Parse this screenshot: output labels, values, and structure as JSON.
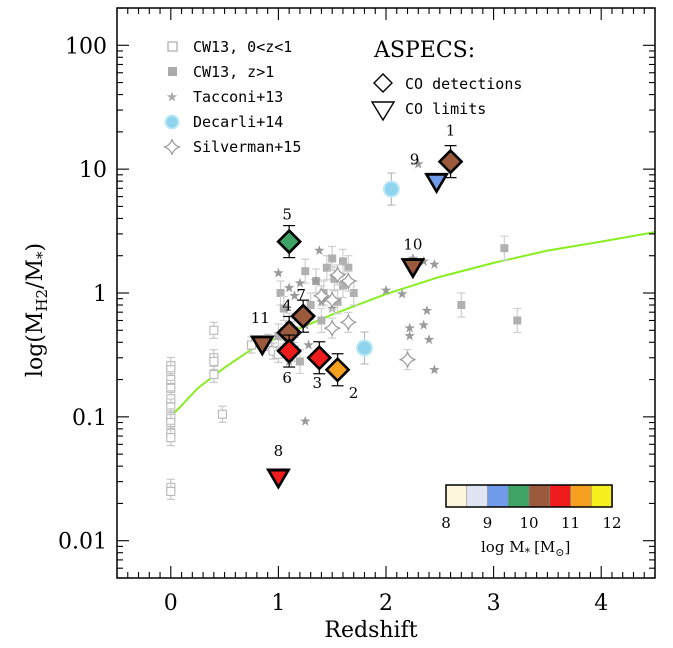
{
  "chart_data": {
    "type": "scatter",
    "xlabel": "Redshift",
    "ylabel": "log(M_H2/M_*)",
    "xlim": [
      -0.5,
      4.5
    ],
    "ylim": [
      0.005,
      200
    ],
    "y_scale": "log",
    "x_ticks": [
      "0",
      "1",
      "2",
      "3",
      "4"
    ],
    "y_ticks": [
      "0.01",
      "0.1",
      "1",
      "10",
      "100"
    ],
    "legend_position": "top-left",
    "legend": {
      "cw13_low": "CW13, 0<z<1",
      "cw13_high": "CW13, z>1",
      "tacconi": "Tacconi+13",
      "decarli": "Decarli+14",
      "silverman": "Silverman+15"
    },
    "aspecs_legend": {
      "title": "ASPECS:",
      "detections": "CO detections",
      "limits": "CO limits"
    },
    "colorbar": {
      "label": "log M",
      "label_sub": "*",
      "label_unit": "[M",
      "label_unit_sub": "⊙",
      "label_close": "]",
      "ticks": [
        "8",
        "9",
        "10",
        "11",
        "12"
      ],
      "colors": [
        "#fdf5dc",
        "#e0e4f4",
        "#6f9be8",
        "#3fa365",
        "#9c5a3c",
        "#ee1c1c",
        "#f5a01e",
        "#f5f01e"
      ]
    },
    "fit_color": "#88ee22",
    "fit_curve": {
      "x": [
        0,
        0.25,
        0.5,
        0.75,
        1,
        1.5,
        2,
        2.5,
        3,
        3.5,
        4,
        4.5
      ],
      "y": [
        0.1,
        0.17,
        0.25,
        0.35,
        0.44,
        0.67,
        0.98,
        1.35,
        1.75,
        2.2,
        2.6,
        3.1
      ]
    },
    "cw13_low": [
      {
        "x": 0.0,
        "y": 0.26
      },
      {
        "x": 0.0,
        "y": 0.24
      },
      {
        "x": 0.0,
        "y": 0.2
      },
      {
        "x": 0.0,
        "y": 0.17
      },
      {
        "x": 0.0,
        "y": 0.14
      },
      {
        "x": 0.0,
        "y": 0.12
      },
      {
        "x": 0.0,
        "y": 0.1
      },
      {
        "x": 0.0,
        "y": 0.09
      },
      {
        "x": 0.0,
        "y": 0.075
      },
      {
        "x": 0.0,
        "y": 0.068
      },
      {
        "x": 0.0,
        "y": 0.027
      },
      {
        "x": 0.0,
        "y": 0.025
      },
      {
        "x": 0.4,
        "y": 0.5
      },
      {
        "x": 0.4,
        "y": 0.3
      },
      {
        "x": 0.4,
        "y": 0.28
      },
      {
        "x": 0.4,
        "y": 0.22
      },
      {
        "x": 0.48,
        "y": 0.105
      },
      {
        "x": 0.75,
        "y": 0.38
      },
      {
        "x": 0.9,
        "y": 0.4
      },
      {
        "x": 0.95,
        "y": 0.34
      },
      {
        "x": 1.0,
        "y": 0.32
      },
      {
        "x": 1.05,
        "y": 0.45
      }
    ],
    "cw13_high": [
      {
        "x": 1.0,
        "y": 0.45
      },
      {
        "x": 1.02,
        "y": 1.0
      },
      {
        "x": 1.05,
        "y": 0.75
      },
      {
        "x": 1.1,
        "y": 0.55
      },
      {
        "x": 1.15,
        "y": 0.5
      },
      {
        "x": 1.15,
        "y": 0.35
      },
      {
        "x": 1.2,
        "y": 0.28
      },
      {
        "x": 1.25,
        "y": 1.5
      },
      {
        "x": 1.3,
        "y": 0.8
      },
      {
        "x": 1.35,
        "y": 1.25
      },
      {
        "x": 1.4,
        "y": 0.6
      },
      {
        "x": 1.42,
        "y": 1.0
      },
      {
        "x": 1.45,
        "y": 1.6
      },
      {
        "x": 1.5,
        "y": 1.9
      },
      {
        "x": 1.52,
        "y": 1.3
      },
      {
        "x": 1.55,
        "y": 0.85
      },
      {
        "x": 1.6,
        "y": 1.8
      },
      {
        "x": 1.6,
        "y": 1.15
      },
      {
        "x": 1.65,
        "y": 1.6
      },
      {
        "x": 1.7,
        "y": 1.0
      },
      {
        "x": 2.7,
        "y": 0.8
      },
      {
        "x": 3.1,
        "y": 2.3
      },
      {
        "x": 3.22,
        "y": 0.6
      }
    ],
    "tacconi": [
      {
        "x": 1.0,
        "y": 1.45
      },
      {
        "x": 1.1,
        "y": 1.1
      },
      {
        "x": 1.15,
        "y": 0.95
      },
      {
        "x": 1.2,
        "y": 1.2
      },
      {
        "x": 1.25,
        "y": 0.55
      },
      {
        "x": 1.28,
        "y": 0.38
      },
      {
        "x": 1.3,
        "y": 0.65
      },
      {
        "x": 1.35,
        "y": 1.25
      },
      {
        "x": 1.38,
        "y": 2.2
      },
      {
        "x": 1.4,
        "y": 0.85
      },
      {
        "x": 1.45,
        "y": 0.9
      },
      {
        "x": 1.5,
        "y": 0.75
      },
      {
        "x": 1.25,
        "y": 0.092
      },
      {
        "x": 1.1,
        "y": 0.28
      },
      {
        "x": 2.0,
        "y": 1.05
      },
      {
        "x": 2.15,
        "y": 0.98
      },
      {
        "x": 2.22,
        "y": 0.52
      },
      {
        "x": 2.22,
        "y": 0.45
      },
      {
        "x": 2.25,
        "y": 1.9
      },
      {
        "x": 2.3,
        "y": 11.0
      },
      {
        "x": 2.35,
        "y": 0.55
      },
      {
        "x": 2.35,
        "y": 1.8
      },
      {
        "x": 2.38,
        "y": 0.72
      },
      {
        "x": 2.4,
        "y": 0.42
      },
      {
        "x": 2.45,
        "y": 0.24
      },
      {
        "x": 2.45,
        "y": 1.7
      }
    ],
    "decarli": [
      {
        "x": 1.8,
        "y": 0.36
      },
      {
        "x": 2.05,
        "y": 6.9
      }
    ],
    "silverman": [
      {
        "x": 1.4,
        "y": 0.95
      },
      {
        "x": 1.5,
        "y": 0.88
      },
      {
        "x": 1.55,
        "y": 1.4
      },
      {
        "x": 1.65,
        "y": 1.25
      },
      {
        "x": 1.65,
        "y": 0.58
      },
      {
        "x": 1.5,
        "y": 0.52
      },
      {
        "x": 2.2,
        "y": 0.29
      }
    ],
    "aspecs_detections": [
      {
        "label": "1",
        "x": 2.6,
        "y": 11.5,
        "color_index": 4
      },
      {
        "label": "2",
        "x": 1.55,
        "y": 0.24,
        "color_index": 6
      },
      {
        "label": "3",
        "x": 1.38,
        "y": 0.3,
        "color_index": 5
      },
      {
        "label": "4",
        "x": 1.1,
        "y": 0.48,
        "color_index": 4
      },
      {
        "label": "5",
        "x": 1.1,
        "y": 2.6,
        "color_index": 3
      },
      {
        "label": "6",
        "x": 1.1,
        "y": 0.34,
        "color_index": 5
      },
      {
        "label": "7",
        "x": 1.23,
        "y": 0.65,
        "color_index": 4
      }
    ],
    "aspecs_limits": [
      {
        "label": "8",
        "x": 1.0,
        "y": 0.032,
        "color_index": 5
      },
      {
        "label": "9",
        "x": 2.47,
        "y": 7.8,
        "color_index": 2
      },
      {
        "label": "10",
        "x": 2.25,
        "y": 1.6,
        "color_index": 4
      },
      {
        "label": "11",
        "x": 0.85,
        "y": 0.38,
        "color_index": 4
      }
    ]
  }
}
